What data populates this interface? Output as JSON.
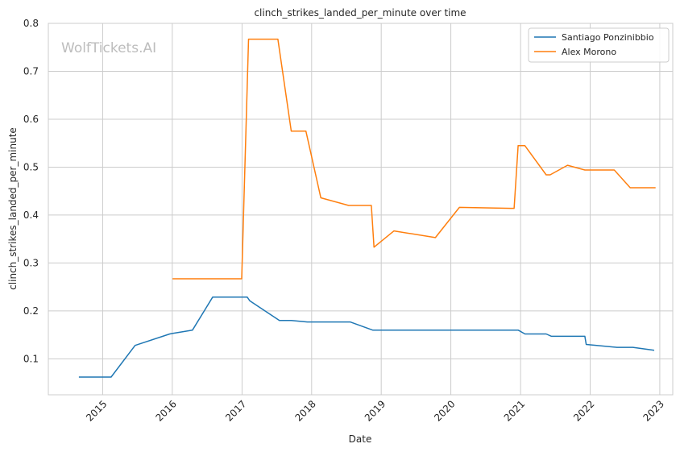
{
  "chart_data": {
    "type": "line",
    "title": "clinch_strikes_landed_per_minute over time",
    "xlabel": "Date",
    "ylabel": "clinch_strikes_landed_per_minute",
    "watermark": "WolfTickets.AI",
    "xlim": [
      "2014-03-22",
      "2023-03-10"
    ],
    "ylim": [
      0.025,
      0.8
    ],
    "x_ticks": [
      "2015",
      "2016",
      "2017",
      "2018",
      "2019",
      "2020",
      "2021",
      "2022",
      "2023"
    ],
    "y_ticks": [
      "0.1",
      "0.2",
      "0.3",
      "0.4",
      "0.5",
      "0.6",
      "0.7",
      "0.8"
    ],
    "grid": true,
    "legend_position": "top-right",
    "series": [
      {
        "name": "Santiago Ponzinibbio",
        "color": "#1f77b4",
        "points": [
          [
            "2014-08-29",
            0.062
          ],
          [
            "2015-02-14",
            0.062
          ],
          [
            "2015-06-20",
            0.128
          ],
          [
            "2015-12-19",
            0.152
          ],
          [
            "2016-01-01",
            0.153
          ],
          [
            "2016-04-16",
            0.16
          ],
          [
            "2016-07-31",
            0.229
          ],
          [
            "2017-01-28",
            0.229
          ],
          [
            "2017-02-11",
            0.221
          ],
          [
            "2017-07-16",
            0.18
          ],
          [
            "2017-09-16",
            0.18
          ],
          [
            "2017-12-09",
            0.177
          ],
          [
            "2018-07-22",
            0.177
          ],
          [
            "2018-11-17",
            0.16
          ],
          [
            "2020-12-19",
            0.16
          ],
          [
            "2021-01-24",
            0.152
          ],
          [
            "2021-05-15",
            0.152
          ],
          [
            "2021-06-12",
            0.147
          ],
          [
            "2021-12-04",
            0.147
          ],
          [
            "2021-12-11",
            0.13
          ],
          [
            "2022-05-21",
            0.124
          ],
          [
            "2022-08-13",
            0.124
          ],
          [
            "2022-12-03",
            0.118
          ]
        ]
      },
      {
        "name": "Alex Morono",
        "color": "#ff7f0e",
        "points": [
          [
            "2016-01-02",
            0.267
          ],
          [
            "2016-12-30",
            0.267
          ],
          [
            "2017-02-04",
            0.767
          ],
          [
            "2017-07-08",
            0.767
          ],
          [
            "2017-09-16",
            0.575
          ],
          [
            "2017-12-02",
            0.575
          ],
          [
            "2018-02-18",
            0.436
          ],
          [
            "2018-07-14",
            0.42
          ],
          [
            "2018-11-10",
            0.42
          ],
          [
            "2018-11-24",
            0.333
          ],
          [
            "2019-03-09",
            0.367
          ],
          [
            "2019-10-12",
            0.353
          ],
          [
            "2020-02-15",
            0.416
          ],
          [
            "2020-11-28",
            0.414
          ],
          [
            "2020-12-19",
            0.545
          ],
          [
            "2021-01-23",
            0.545
          ],
          [
            "2021-05-15",
            0.484
          ],
          [
            "2021-06-05",
            0.484
          ],
          [
            "2021-09-04",
            0.504
          ],
          [
            "2021-12-04",
            0.494
          ],
          [
            "2022-05-07",
            0.494
          ],
          [
            "2022-07-30",
            0.457
          ],
          [
            "2022-12-10",
            0.457
          ]
        ]
      }
    ]
  }
}
